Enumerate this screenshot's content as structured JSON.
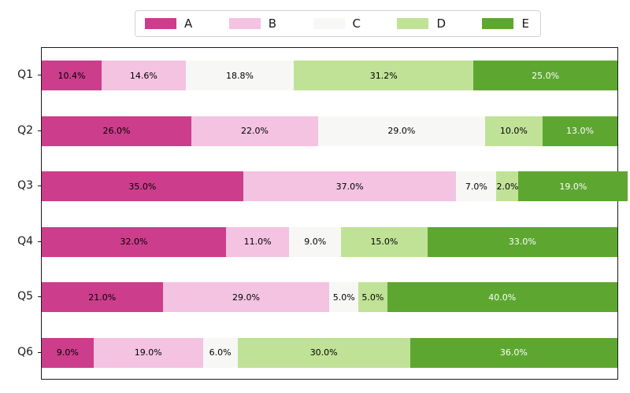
{
  "chart_data": {
    "type": "bar",
    "orientation": "horizontal",
    "stacked": true,
    "title": "",
    "xlabel": "",
    "ylabel": "",
    "xlim": [
      0,
      100
    ],
    "grid": false,
    "legend_position": "top-center",
    "value_label_format": "one_decimal_percent",
    "categories": [
      "Q1",
      "Q2",
      "Q3",
      "Q4",
      "Q5",
      "Q6"
    ],
    "series": [
      {
        "name": "A",
        "color": "#cc3d8c",
        "label_text_color": "#000000",
        "values": [
          10.4,
          26.0,
          35.0,
          32.0,
          21.0,
          9.0
        ]
      },
      {
        "name": "B",
        "color": "#f3c3e1",
        "label_text_color": "#000000",
        "values": [
          14.6,
          22.0,
          37.0,
          11.0,
          29.0,
          19.0
        ]
      },
      {
        "name": "C",
        "color": "#f7f7f5",
        "label_text_color": "#000000",
        "values": [
          18.8,
          29.0,
          7.0,
          9.0,
          5.0,
          6.0
        ]
      },
      {
        "name": "D",
        "color": "#c0e296",
        "label_text_color": "#000000",
        "values": [
          31.2,
          10.0,
          2.0,
          15.0,
          5.0,
          30.0
        ]
      },
      {
        "name": "E",
        "color": "#5da731",
        "label_text_color": "#ffffff",
        "values": [
          25.0,
          13.0,
          19.0,
          33.0,
          40.0,
          36.0
        ]
      }
    ],
    "segment_labels": {
      "Q1": [
        "10.4%",
        "14.6%",
        "18.8%",
        "31.2%",
        "25.0%"
      ],
      "Q2": [
        "26.0%",
        "22.0%",
        "29.0%",
        "10.0%",
        "13.0%"
      ],
      "Q3": [
        "35.0%",
        "37.0%",
        "7.0%",
        "2.0%",
        "19.0%"
      ],
      "Q4": [
        "32.0%",
        "11.0%",
        "9.0%",
        "15.0%",
        "33.0%"
      ],
      "Q5": [
        "21.0%",
        "29.0%",
        "5.0%",
        "5.0%",
        "40.0%"
      ],
      "Q6": [
        "9.0%",
        "19.0%",
        "6.0%",
        "30.0%",
        "36.0%"
      ]
    },
    "legend_labels": [
      "A",
      "B",
      "C",
      "D",
      "E"
    ]
  },
  "colors": {
    "spine": "#1a1a1a",
    "background": "#ffffff",
    "legend_border": "#d2d2d2"
  }
}
